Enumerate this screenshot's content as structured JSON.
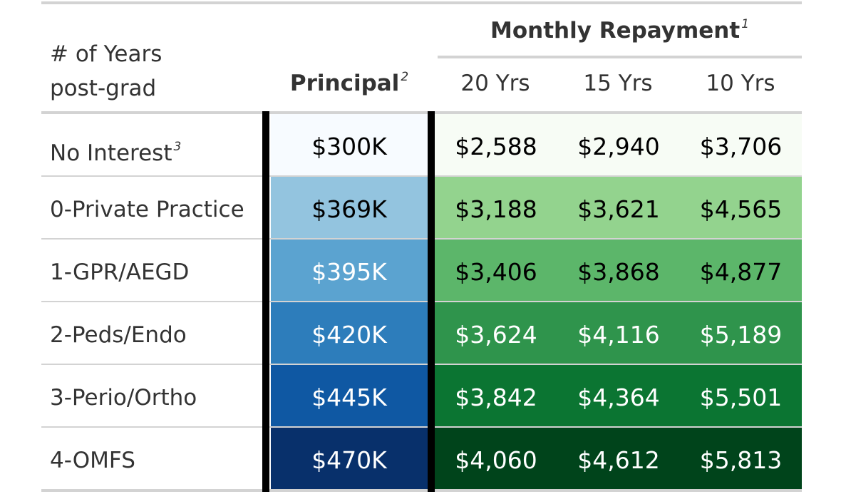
{
  "header": {
    "stub_line1": "# of Years",
    "stub_line2": "post-grad",
    "principal": "Principal",
    "principal_fn": "2",
    "spanner": "Monthly Repayment",
    "spanner_fn": "1",
    "columns": [
      "20 Yrs",
      "15 Yrs",
      "10 Yrs"
    ]
  },
  "rows": [
    {
      "label": "No Interest",
      "fn": "3",
      "principal": "$300K",
      "y20": "$2,588",
      "y15": "$2,940",
      "y10": "$3,706",
      "principal_bg": "#f7fbff",
      "principal_fg": "#000000",
      "green_bg": "#f7fcf5",
      "green_fg": "#000000"
    },
    {
      "label": "0-Private Practice",
      "fn": "",
      "principal": "$369K",
      "y20": "$3,188",
      "y15": "$3,621",
      "y10": "$4,565",
      "principal_bg": "#93c4df",
      "principal_fg": "#000000",
      "green_bg": "#93d38e",
      "green_fg": "#000000"
    },
    {
      "label": "1-GPR/AEGD",
      "fn": "",
      "principal": "$395K",
      "y20": "$3,406",
      "y15": "$3,868",
      "y10": "$4,877",
      "principal_bg": "#5ba3d0",
      "principal_fg": "#ffffff",
      "green_bg": "#5cb66a",
      "green_fg": "#000000"
    },
    {
      "label": "2-Peds/Endo",
      "fn": "",
      "principal": "$420K",
      "y20": "$3,624",
      "y15": "$4,116",
      "y10": "$5,189",
      "principal_bg": "#2d7dbb",
      "principal_fg": "#ffffff",
      "green_bg": "#2f944c",
      "green_fg": "#ffffff"
    },
    {
      "label": "3-Perio/Ortho",
      "fn": "",
      "principal": "$445K",
      "y20": "$3,842",
      "y15": "$4,364",
      "y10": "$5,501",
      "principal_bg": "#0f58a3",
      "principal_fg": "#ffffff",
      "green_bg": "#0b7532",
      "green_fg": "#ffffff"
    },
    {
      "label": "4-OMFS",
      "fn": "",
      "principal": "$470K",
      "y20": "$4,060",
      "y15": "$4,612",
      "y10": "$5,813",
      "principal_bg": "#08306b",
      "principal_fg": "#ffffff",
      "green_bg": "#00441b",
      "green_fg": "#ffffff"
    }
  ]
}
